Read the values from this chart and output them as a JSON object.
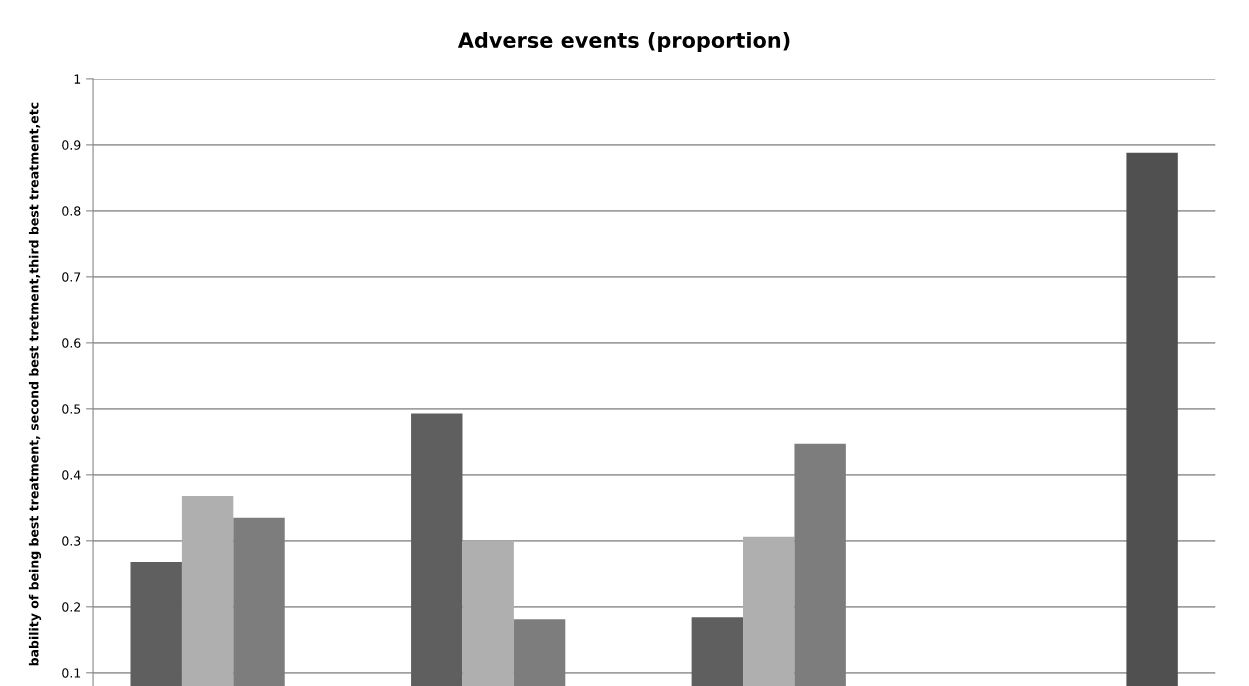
{
  "chart_data": {
    "type": "bar",
    "title": "Adverse events (proportion)",
    "ylabel": "bability of being best treatment, second best tretment,third best treatment,etc",
    "categories": [
      null,
      null,
      null,
      null
    ],
    "series": [
      {
        "color": "#5f5f5f",
        "values": [
          0.268,
          0.493,
          0.184,
          null
        ]
      },
      {
        "color": "#afafaf",
        "values": [
          0.368,
          0.3,
          0.306,
          null
        ]
      },
      {
        "color": "#7d7d7d",
        "values": [
          0.335,
          0.181,
          0.447,
          null
        ]
      },
      {
        "color": "#505050",
        "values": [
          null,
          null,
          null,
          0.888
        ]
      }
    ],
    "ylim": [
      0.08,
      1
    ],
    "yticks": [
      0.1,
      0.2,
      0.3,
      0.4,
      0.5,
      0.6,
      0.7,
      0.8,
      0.9,
      1
    ],
    "grid": "y",
    "legend": false
  }
}
